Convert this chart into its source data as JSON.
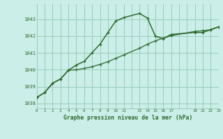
{
  "title": "Graphe pression niveau de la mer (hPa)",
  "bg_color": "#cceee8",
  "grid_color": "#99ccbb",
  "line_color": "#2d6a2d",
  "xlim": [
    0,
    23
  ],
  "ylim": [
    1037.7,
    1043.9
  ],
  "y_ticks": [
    1038,
    1039,
    1040,
    1041,
    1042,
    1043
  ],
  "x_ticks": [
    0,
    1,
    2,
    3,
    4,
    5,
    6,
    7,
    8,
    9,
    10,
    11,
    13,
    14,
    15,
    16,
    17,
    20,
    21,
    22,
    23
  ],
  "series1_x": [
    0,
    1,
    2,
    3,
    4,
    5,
    6,
    7,
    8,
    9,
    10,
    11,
    13,
    14,
    15,
    16,
    17,
    20,
    21,
    22,
    23
  ],
  "series1_y": [
    1038.35,
    1038.65,
    1039.2,
    1039.45,
    1039.97,
    1040.28,
    1040.5,
    1041.02,
    1041.52,
    1042.22,
    1042.9,
    1043.1,
    1043.35,
    1043.07,
    1042.0,
    1041.85,
    1042.1,
    1042.22,
    1042.22,
    1042.38,
    1042.55
  ],
  "series2_x": [
    0,
    1,
    2,
    3,
    4,
    5,
    6,
    7,
    8,
    9,
    10,
    11,
    13,
    14,
    15,
    16,
    17,
    20,
    21,
    22,
    23
  ],
  "series2_y": [
    1038.35,
    1038.65,
    1039.2,
    1039.45,
    1039.97,
    1040.0,
    1040.08,
    1040.18,
    1040.32,
    1040.48,
    1040.68,
    1040.88,
    1041.28,
    1041.52,
    1041.72,
    1041.88,
    1042.02,
    1042.28,
    1042.32,
    1042.38,
    1042.55
  ],
  "x_grid_all": [
    0,
    1,
    2,
    3,
    4,
    5,
    6,
    7,
    8,
    9,
    10,
    11,
    12,
    13,
    14,
    15,
    16,
    17,
    18,
    19,
    20,
    21,
    22,
    23
  ]
}
